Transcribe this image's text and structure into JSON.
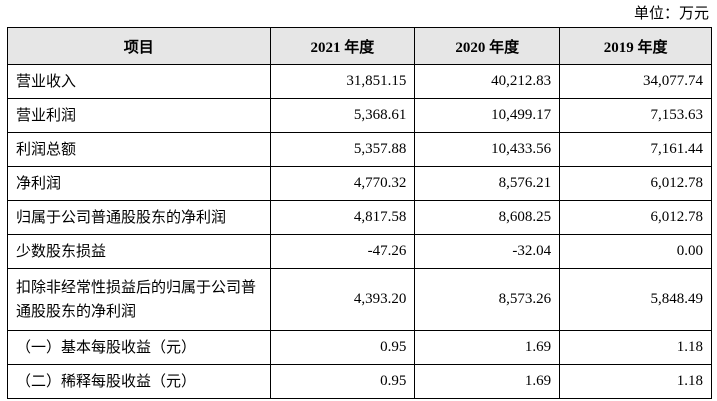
{
  "unit": "单位：万元",
  "table": {
    "header": [
      "项目",
      "2021 年度",
      "2020 年度",
      "2019 年度"
    ],
    "rows": [
      [
        "营业收入",
        "31,851.15",
        "40,212.83",
        "34,077.74"
      ],
      [
        "营业利润",
        "5,368.61",
        "10,499.17",
        "7,153.63"
      ],
      [
        "利润总额",
        "5,357.88",
        "10,433.56",
        "7,161.44"
      ],
      [
        "净利润",
        "4,770.32",
        "8,576.21",
        "6,012.78"
      ],
      [
        "归属于公司普通股股东的净利润",
        "4,817.58",
        "8,608.25",
        "6,012.78"
      ],
      [
        "少数股东损益",
        "-47.26",
        "-32.04",
        "0.00"
      ],
      [
        "扣除非经常性损益后的归属于公司普通股股东的净利润",
        "4,393.20",
        "8,573.26",
        "5,848.49"
      ],
      [
        "（一）基本每股收益（元）",
        "0.95",
        "1.69",
        "1.18"
      ],
      [
        "（二）稀释每股收益（元）",
        "0.95",
        "1.69",
        "1.18"
      ]
    ]
  }
}
